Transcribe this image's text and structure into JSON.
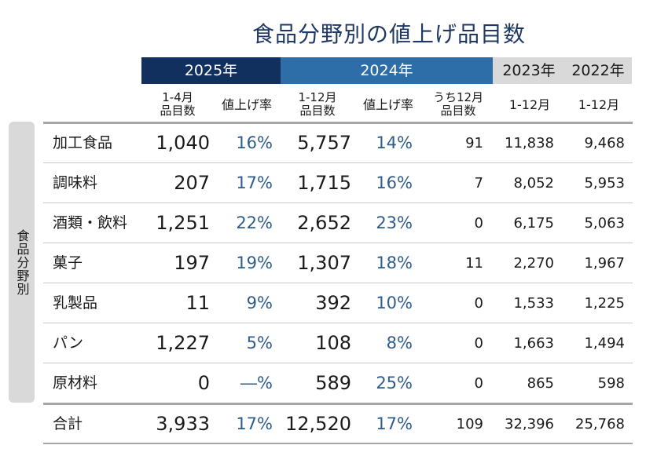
{
  "title": "食品分野別の値上げ品目数",
  "side_label": "食品分野別",
  "years": {
    "y2025": "2025年",
    "y2024": "2024年",
    "y2023": "2023年",
    "y2022": "2022年"
  },
  "subheaders": {
    "c1": [
      "1-4月",
      "品目数"
    ],
    "c2": "値上げ率",
    "c3": [
      "1-12月",
      "品目数"
    ],
    "c4": "値上げ率",
    "c5": [
      "うち12月",
      "品目数"
    ],
    "c6": "1-12月",
    "c7": "1-12月"
  },
  "rows": [
    {
      "name": "加工食品",
      "v2025": "1,040",
      "r2025": "16%",
      "v2024": "5,757",
      "r2024": "14%",
      "dec2024": "91",
      "v2023": "11,838",
      "v2022": "9,468"
    },
    {
      "name": "調味料",
      "v2025": "207",
      "r2025": "17%",
      "v2024": "1,715",
      "r2024": "16%",
      "dec2024": "7",
      "v2023": "8,052",
      "v2022": "5,953"
    },
    {
      "name": "酒類・飲料",
      "v2025": "1,251",
      "r2025": "22%",
      "v2024": "2,652",
      "r2024": "23%",
      "dec2024": "0",
      "v2023": "6,175",
      "v2022": "5,063"
    },
    {
      "name": "菓子",
      "v2025": "197",
      "r2025": "19%",
      "v2024": "1,307",
      "r2024": "18%",
      "dec2024": "11",
      "v2023": "2,270",
      "v2022": "1,967"
    },
    {
      "name": "乳製品",
      "v2025": "11",
      "r2025": "9%",
      "v2024": "392",
      "r2024": "10%",
      "dec2024": "0",
      "v2023": "1,533",
      "v2022": "1,225"
    },
    {
      "name": "パン",
      "v2025": "1,227",
      "r2025": "5%",
      "v2024": "108",
      "r2024": "8%",
      "dec2024": "0",
      "v2023": "1,663",
      "v2022": "1,494"
    },
    {
      "name": "原材料",
      "v2025": "0",
      "r2025": "―%",
      "v2024": "589",
      "r2024": "25%",
      "dec2024": "0",
      "v2023": "865",
      "v2022": "598"
    },
    {
      "name": "合計",
      "v2025": "3,933",
      "r2025": "17%",
      "v2024": "12,520",
      "r2024": "17%",
      "dec2024": "109",
      "v2023": "32,396",
      "v2022": "25,768"
    }
  ]
}
